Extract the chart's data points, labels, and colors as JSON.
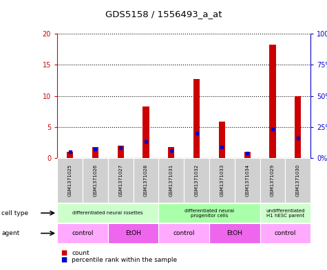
{
  "title": "GDS5158 / 1556493_a_at",
  "samples": [
    "GSM1371025",
    "GSM1371026",
    "GSM1371027",
    "GSM1371028",
    "GSM1371031",
    "GSM1371032",
    "GSM1371033",
    "GSM1371034",
    "GSM1371029",
    "GSM1371030"
  ],
  "count_values": [
    1.0,
    1.8,
    2.0,
    8.3,
    1.8,
    12.7,
    5.8,
    1.0,
    18.2,
    10.0
  ],
  "percentile_values": [
    5,
    7,
    8,
    13,
    6,
    20,
    9,
    4,
    23,
    16
  ],
  "ylim_left": [
    0,
    20
  ],
  "ylim_right": [
    0,
    100
  ],
  "yticks_left": [
    0,
    5,
    10,
    15,
    20
  ],
  "yticks_right": [
    0,
    25,
    50,
    75,
    100
  ],
  "ytick_labels_left": [
    "0",
    "5",
    "10",
    "15",
    "20"
  ],
  "ytick_labels_right": [
    "0%",
    "25%",
    "50%",
    "75%",
    "100%"
  ],
  "bar_color": "#cc0000",
  "dot_color": "#0000cc",
  "cell_type_groups": [
    {
      "label": "differentiated neural rosettes",
      "start": 0,
      "end": 3,
      "color": "#ccffcc"
    },
    {
      "label": "differentiated neural\nprogenitor cells",
      "start": 4,
      "end": 7,
      "color": "#aaffaa"
    },
    {
      "label": "undifferentiated\nH1 hESC parent",
      "start": 8,
      "end": 9,
      "color": "#ccffcc"
    }
  ],
  "agent_groups": [
    {
      "label": "control",
      "start": 0,
      "end": 1,
      "color": "#ffaaff"
    },
    {
      "label": "EtOH",
      "start": 2,
      "end": 3,
      "color": "#ee66ee"
    },
    {
      "label": "control",
      "start": 4,
      "end": 5,
      "color": "#ffaaff"
    },
    {
      "label": "EtOH",
      "start": 6,
      "end": 7,
      "color": "#ee66ee"
    },
    {
      "label": "control",
      "start": 8,
      "end": 9,
      "color": "#ffaaff"
    }
  ],
  "legend_count_color": "#cc0000",
  "legend_percentile_color": "#0000cc",
  "plot_facecolor": "#ffffff",
  "sample_box_color": "#d0d0d0"
}
